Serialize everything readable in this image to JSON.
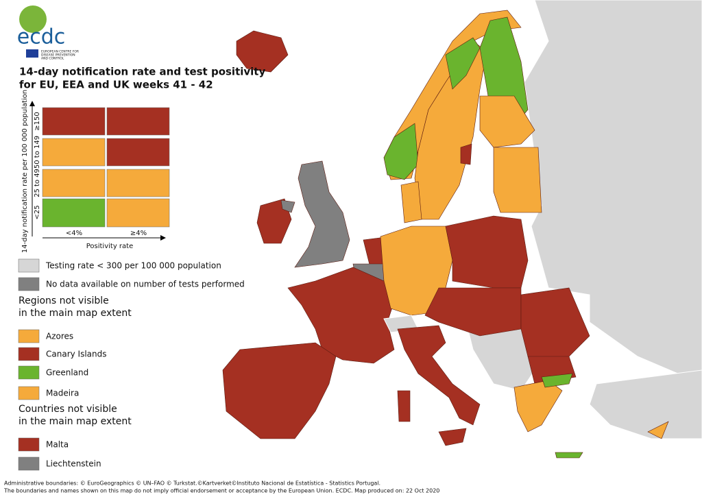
{
  "logo": {
    "name": "ecdc",
    "subtitle": [
      "EUROPEAN CENTRE FOR",
      "DISEASE PREVENTION",
      "AND CONTROL"
    ]
  },
  "title": [
    "14-day notification rate and test positivity",
    "for EU, EEA and UK weeks 41 - 42"
  ],
  "matrix": {
    "y_label": "14-day notification rate per 100 000 population",
    "rows": [
      "≥150",
      "50 to 149",
      "25 to 49",
      "<25"
    ],
    "columns": [
      "<4%",
      "≥4%"
    ],
    "x_label": "Positivity rate"
  },
  "testing_legend": [
    "Testing rate < 300 per 100 000 population",
    "No data available on number of tests performed"
  ],
  "regions": {
    "heading": [
      "Regions not visible",
      "in the main map extent"
    ],
    "items": [
      "Azores",
      "Canary Islands",
      "Greenland",
      "Madeira"
    ]
  },
  "countries": {
    "heading": [
      "Countries not visible",
      "in the main map extent"
    ],
    "items": [
      "Malta",
      "Liechtenstein"
    ]
  },
  "footer": [
    "Administrative boundaries: © EuroGeographics © UN–FAO © Turkstat.©Kartverket©Instituto Nacional de Estatística - Statistics Portugal.",
    "The boundaries and names shown on this map do not imply official endorsement or acceptance by the European Union. ECDC. Map produced on: 22 Oct 2020"
  ]
}
